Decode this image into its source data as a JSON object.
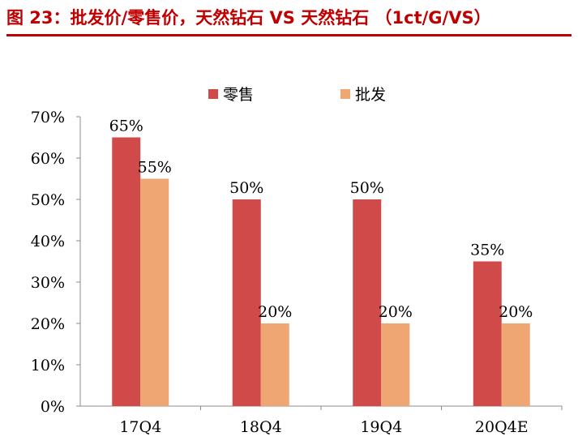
{
  "header": {
    "title": "图 23：批发价/零售价，天然钻石 VS 天然钻石 （1ct/G/VS）"
  },
  "chart_data": {
    "type": "bar",
    "categories": [
      "17Q4",
      "18Q4",
      "19Q4",
      "20Q4E"
    ],
    "series": [
      {
        "name": "零售",
        "values": [
          0.65,
          0.5,
          0.5,
          0.35
        ],
        "labels": [
          "65%",
          "50%",
          "50%",
          "35%"
        ],
        "color": "#d04a4a"
      },
      {
        "name": "批发",
        "values": [
          0.55,
          0.2,
          0.2,
          0.2
        ],
        "labels": [
          "55%",
          "20%",
          "20%",
          "20%"
        ],
        "color": "#f0a673"
      }
    ],
    "y_ticks": [
      {
        "value": 0.0,
        "label": "0%"
      },
      {
        "value": 0.1,
        "label": "10%"
      },
      {
        "value": 0.2,
        "label": "20%"
      },
      {
        "value": 0.3,
        "label": "30%"
      },
      {
        "value": 0.4,
        "label": "40%"
      },
      {
        "value": 0.5,
        "label": "50%"
      },
      {
        "value": 0.6,
        "label": "60%"
      },
      {
        "value": 0.7,
        "label": "70%"
      }
    ],
    "ylim": [
      0,
      0.7
    ],
    "grid": false,
    "legend_position": "top-center",
    "title": "",
    "xlabel": "",
    "ylabel": ""
  }
}
